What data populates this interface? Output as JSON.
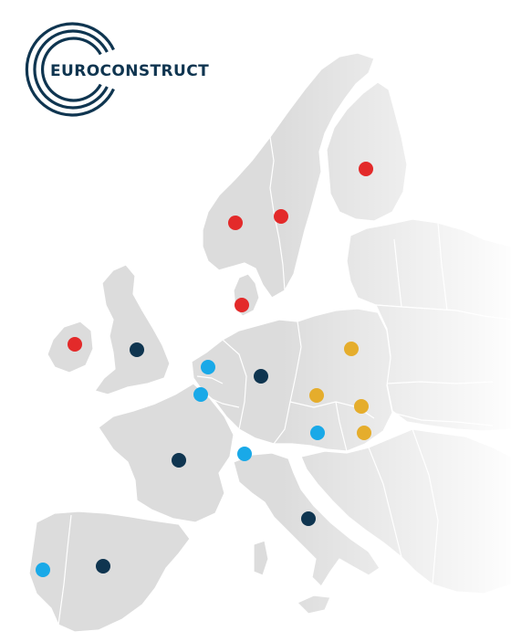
{
  "logo": {
    "text": "EUROCONSTRUCT",
    "color": "#0f3550"
  },
  "map": {
    "land_color": "#dcdcdc",
    "border_color": "#ffffff",
    "legend": []
  },
  "colors": {
    "red": "#e32a2a",
    "navy": "#0f3550",
    "blue": "#19a9e8",
    "gold": "#e5ad2c"
  },
  "markers": [
    {
      "id": "finland",
      "color": "red"
    },
    {
      "id": "norway",
      "color": "red"
    },
    {
      "id": "sweden",
      "color": "red"
    },
    {
      "id": "denmark",
      "color": "red"
    },
    {
      "id": "ireland",
      "color": "red"
    },
    {
      "id": "united-kingdom",
      "color": "navy"
    },
    {
      "id": "netherlands",
      "color": "blue"
    },
    {
      "id": "belgium",
      "color": "blue"
    },
    {
      "id": "germany",
      "color": "navy"
    },
    {
      "id": "poland",
      "color": "gold"
    },
    {
      "id": "czech-republic",
      "color": "gold"
    },
    {
      "id": "slovakia",
      "color": "gold"
    },
    {
      "id": "hungary",
      "color": "gold"
    },
    {
      "id": "austria",
      "color": "blue"
    },
    {
      "id": "switzerland",
      "color": "blue"
    },
    {
      "id": "france",
      "color": "navy"
    },
    {
      "id": "italy",
      "color": "navy"
    },
    {
      "id": "portugal",
      "color": "blue"
    },
    {
      "id": "spain",
      "color": "navy"
    }
  ]
}
